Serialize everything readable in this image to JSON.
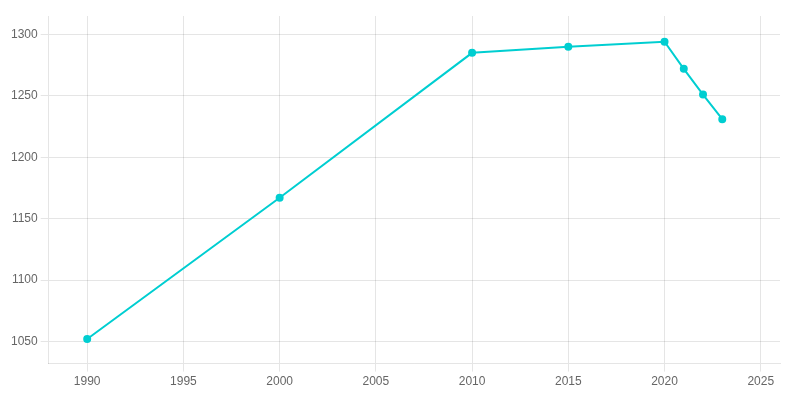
{
  "chart_data": {
    "type": "line",
    "x": [
      1990,
      2000,
      2010,
      2015,
      2020,
      2021,
      2022,
      2023
    ],
    "values": [
      1052,
      1167,
      1285,
      1290,
      1294,
      1272,
      1251,
      1231
    ],
    "color": "#00CED1",
    "marker": "circle",
    "xlim": [
      1988,
      2026
    ],
    "ylim": [
      1032,
      1315
    ],
    "xticks": [
      1990,
      1995,
      2000,
      2005,
      2010,
      2015,
      2020,
      2025
    ],
    "yticks": [
      1050,
      1100,
      1150,
      1200,
      1250,
      1300
    ],
    "grid": true
  }
}
